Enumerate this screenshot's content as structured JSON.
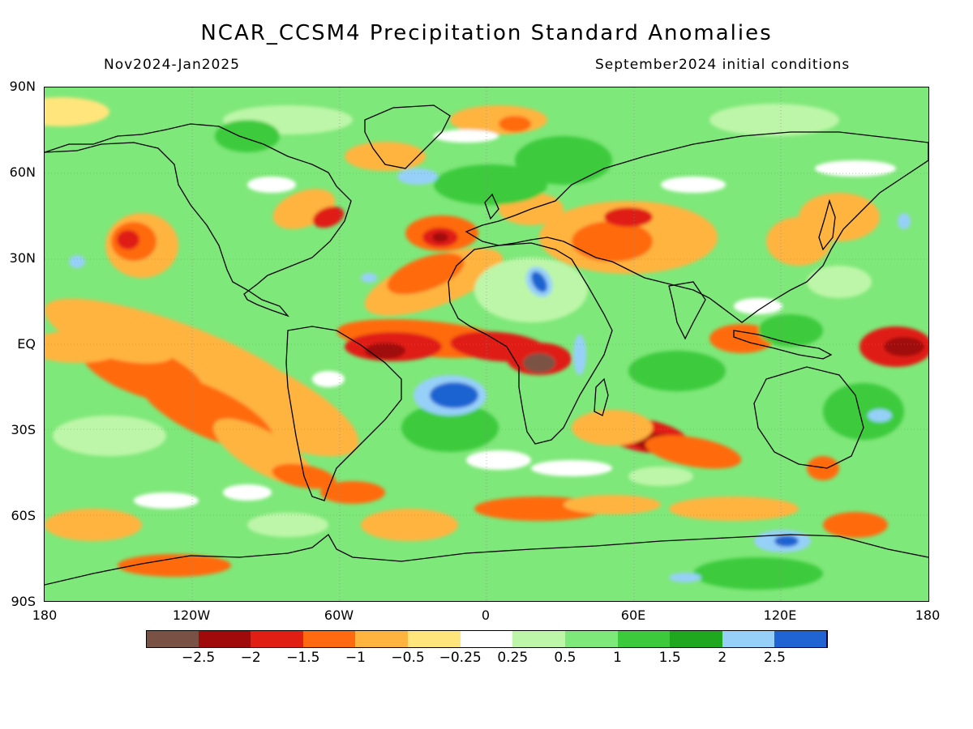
{
  "header": {
    "title": "NCAR_CCSM4 Precipitation Standard Anomalies",
    "period": "Nov2024-Jan2025",
    "init": "September2024 initial conditions"
  },
  "axes": {
    "lat_labels": [
      "90N",
      "60N",
      "30N",
      "EQ",
      "30S",
      "60S",
      "90S"
    ],
    "lon_labels": [
      "180",
      "120W",
      "60W",
      "0",
      "60E",
      "120E",
      "180"
    ]
  },
  "colorbar": {
    "colors": [
      "#7a5245",
      "#a00a0a",
      "#e01e14",
      "#ff6a10",
      "#ffb440",
      "#ffe57c",
      "#ffffff",
      "#bdf6a8",
      "#7ee87a",
      "#3cca3c",
      "#1fa81f",
      "#96d0f8",
      "#1f64d2"
    ],
    "labels": [
      "−2.5",
      "−2",
      "−1.5",
      "−1",
      "−0.5",
      "−0.25",
      "0.25",
      "0.5",
      "1",
      "1.5",
      "2",
      "2.5"
    ]
  },
  "map_colors": {
    "background_green": "#7fe87a",
    "dark_green": "#3cca3c",
    "light_green": "#bdf6a8",
    "yellow": "#ffe57c",
    "orange": "#ffb440",
    "dark_orange": "#ff6a10",
    "red": "#e01e14",
    "dark_red": "#a00a0a",
    "brown": "#7a5245",
    "light_blue": "#96d0f8",
    "blue": "#1f64d2"
  }
}
